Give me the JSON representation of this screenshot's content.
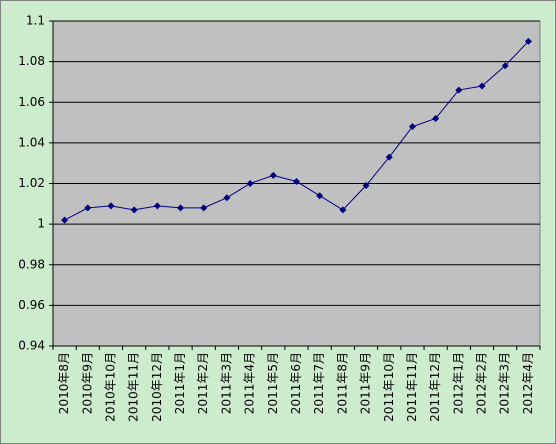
{
  "chart_data": {
    "type": "line",
    "categories": [
      "2010年8月",
      "2010年9月",
      "2010年10月",
      "2010年11月",
      "2010年12月",
      "2011年1月",
      "2011年2月",
      "2011年3月",
      "2011年4月",
      "2011年5月",
      "2011年6月",
      "2011年7月",
      "2011年8月",
      "2011年9月",
      "2011年10月",
      "2011年11月",
      "2011年12月",
      "2012年1月",
      "2012年2月",
      "2012年3月",
      "2012年4月"
    ],
    "series": [
      {
        "color": "#000080",
        "values": [
          1.002,
          1.008,
          1.009,
          1.007,
          1.009,
          1.008,
          1.008,
          1.013,
          1.02,
          1.024,
          1.021,
          1.014,
          1.007,
          1.019,
          1.033,
          1.048,
          1.052,
          1.066,
          1.068,
          1.078,
          1.09
        ]
      }
    ],
    "ylim": [
      0.94,
      1.1
    ],
    "yticks": [
      0.94,
      0.96,
      0.98,
      1,
      1.02,
      1.04,
      1.06,
      1.08,
      1.1
    ],
    "grid": true
  }
}
